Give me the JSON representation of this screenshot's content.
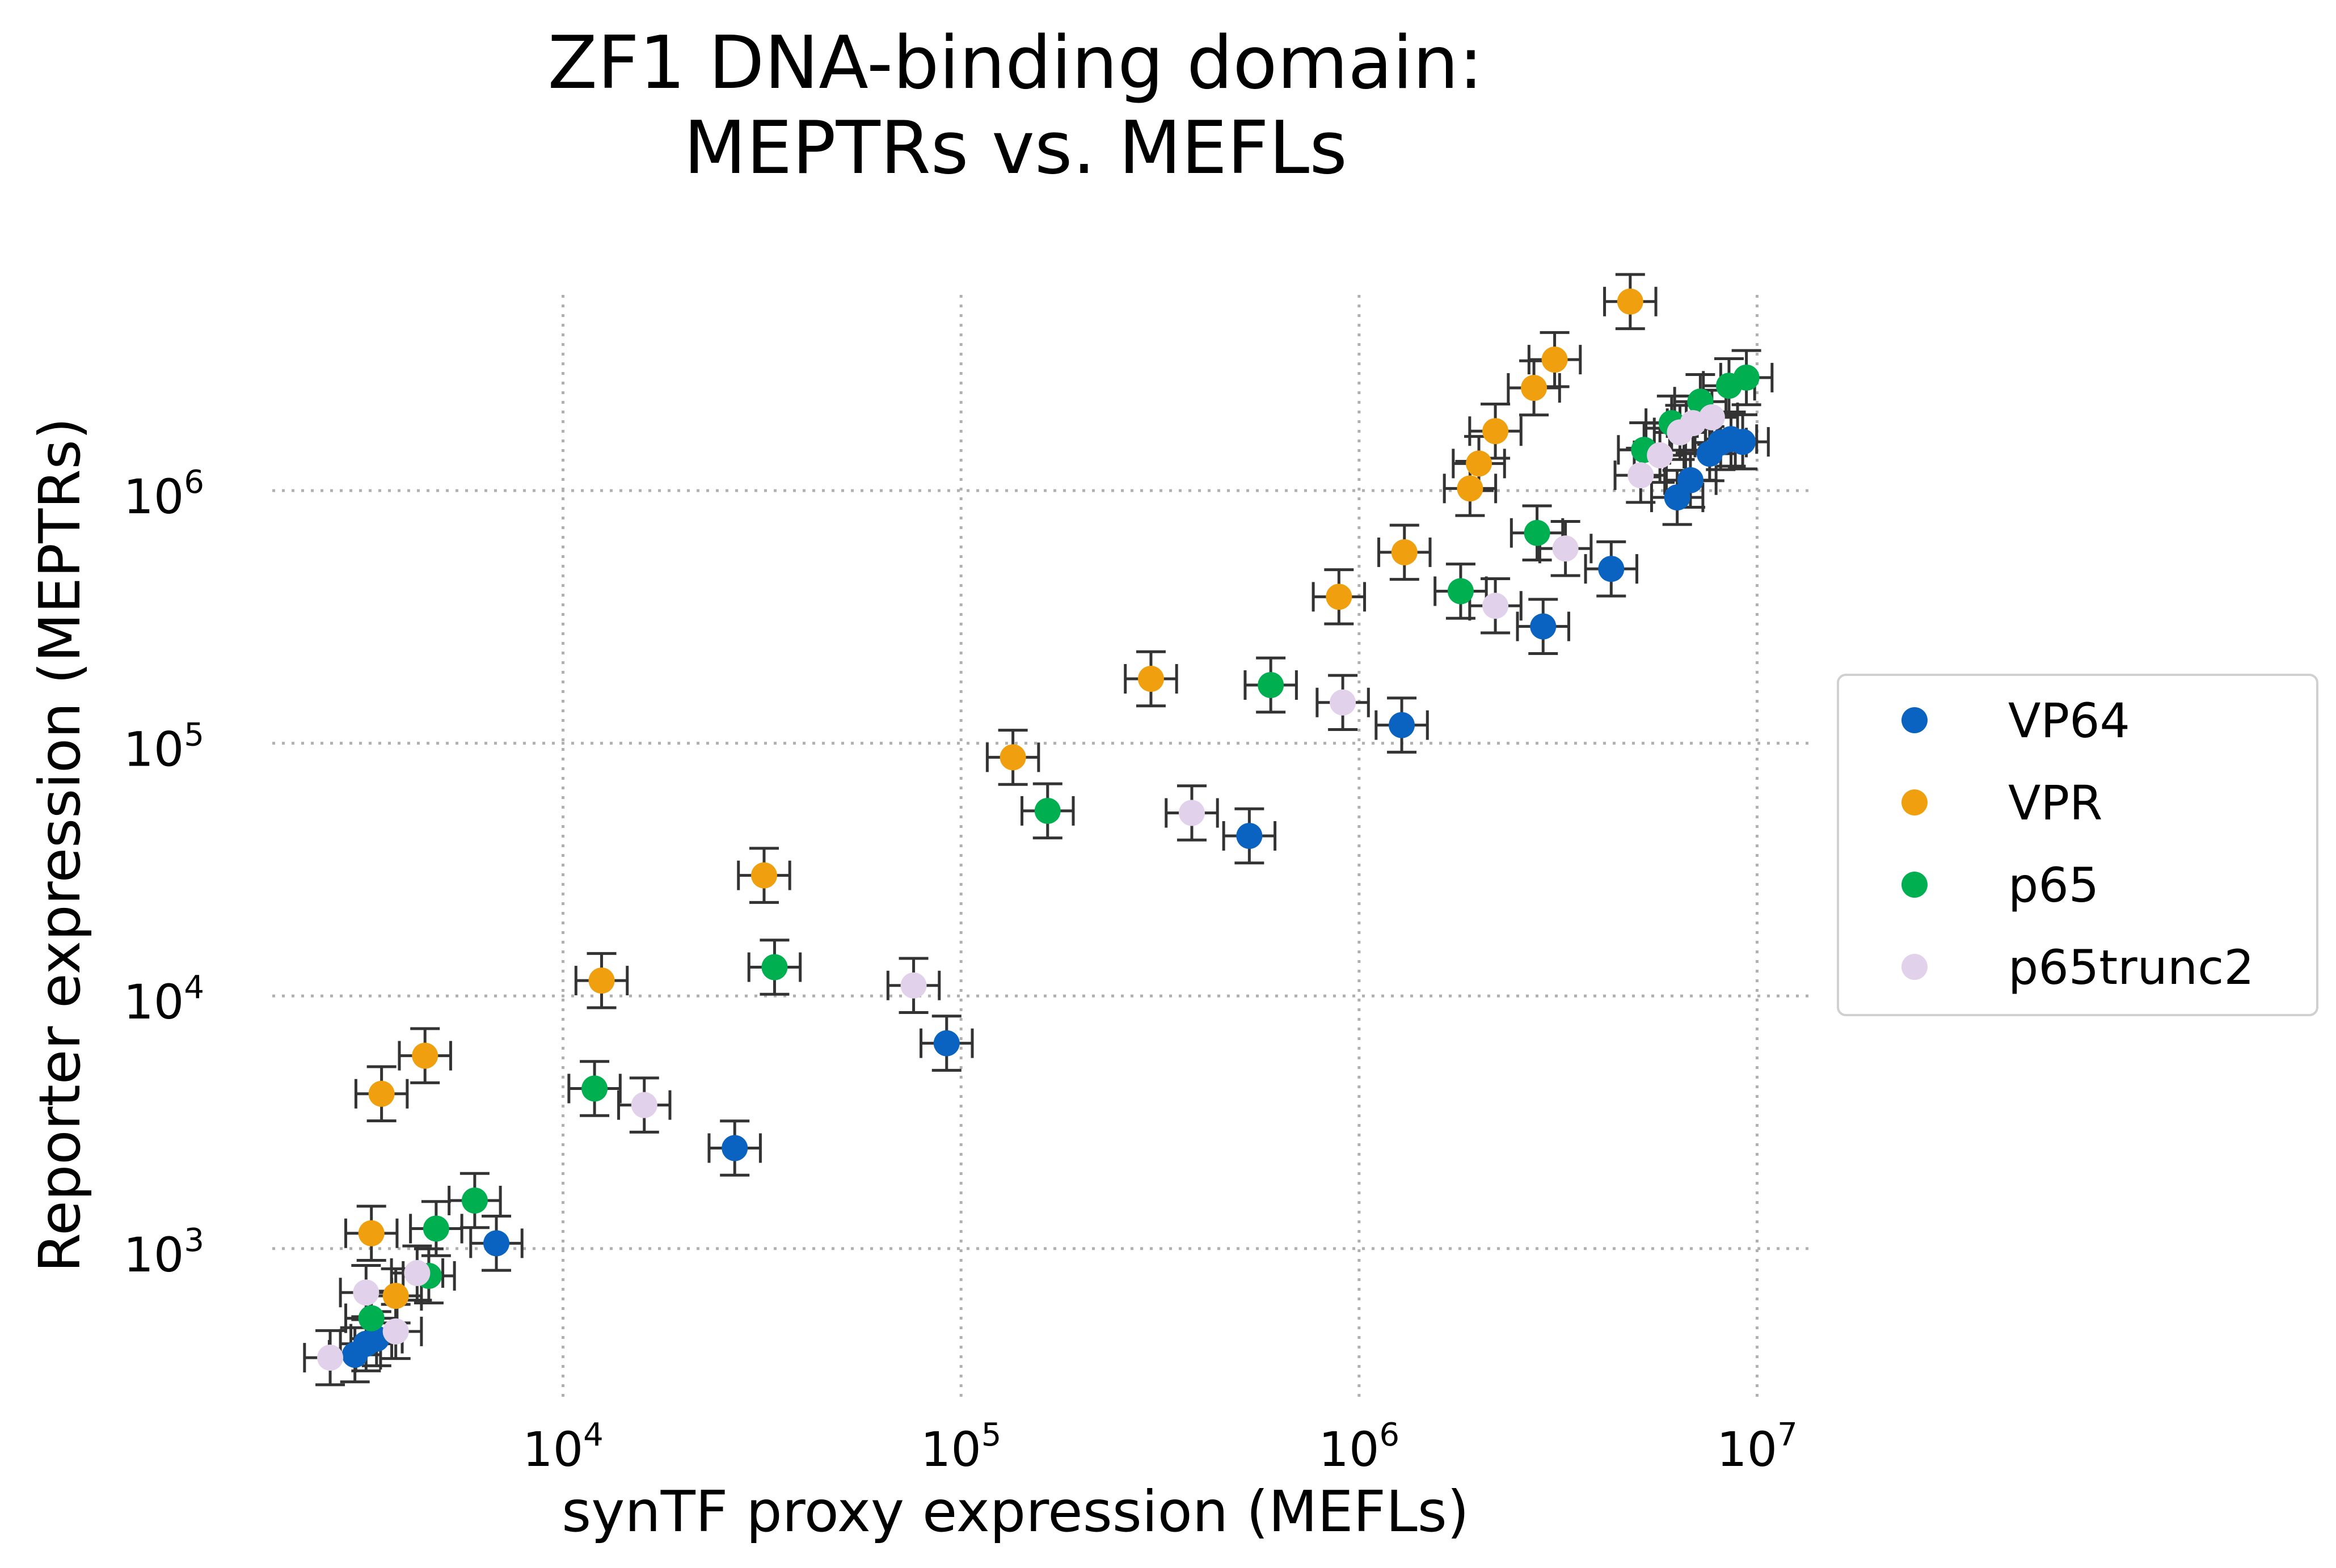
{
  "chart_data": {
    "type": "scatter",
    "title_line1": "ZF1 DNA-binding domain:",
    "title_line2": "MEPTRs vs. MEFLs",
    "xlabel": "synTF proxy expression (MEFLs)",
    "ylabel": "Reporter expression (MEPTRs)",
    "xscale": "log",
    "yscale": "log",
    "xlim": [
      1800,
      14000000
    ],
    "ylim": [
      250,
      9000000
    ],
    "grid": true,
    "legend_position": "right",
    "x_ticks": [
      {
        "base": "10",
        "exp": "4",
        "value": 10000
      },
      {
        "base": "10",
        "exp": "5",
        "value": 100000
      },
      {
        "base": "10",
        "exp": "6",
        "value": 1000000
      },
      {
        "base": "10",
        "exp": "7",
        "value": 10000000
      }
    ],
    "y_ticks": [
      {
        "base": "10",
        "exp": "3",
        "value": 1000
      },
      {
        "base": "10",
        "exp": "4",
        "value": 10000
      },
      {
        "base": "10",
        "exp": "5",
        "value": 100000
      },
      {
        "base": "10",
        "exp": "6",
        "value": 1000000
      }
    ],
    "series": [
      {
        "name": "VP64",
        "color": "#0b63c1",
        "points": [
          [
            3000,
            380
          ],
          [
            3200,
            420
          ],
          [
            3400,
            440
          ],
          [
            6800,
            1050
          ],
          [
            27000,
            2500
          ],
          [
            92000,
            6500
          ],
          [
            530000,
            43000
          ],
          [
            1280000,
            118000
          ],
          [
            2900000,
            290000
          ],
          [
            4300000,
            490000
          ],
          [
            6300000,
            940000
          ],
          [
            6800000,
            1100000
          ],
          [
            7600000,
            1400000
          ],
          [
            8100000,
            1550000
          ],
          [
            8600000,
            1600000
          ],
          [
            9200000,
            1560000
          ]
        ]
      },
      {
        "name": "VPR",
        "color": "#f0a00f",
        "points": [
          [
            3300,
            1150
          ],
          [
            3500,
            4100
          ],
          [
            3800,
            650
          ],
          [
            4500,
            5800
          ],
          [
            12500,
            11500
          ],
          [
            32000,
            30000
          ],
          [
            135000,
            88000
          ],
          [
            300000,
            180000
          ],
          [
            890000,
            380000
          ],
          [
            1300000,
            570000
          ],
          [
            1900000,
            1020000
          ],
          [
            2000000,
            1280000
          ],
          [
            2200000,
            1720000
          ],
          [
            2750000,
            2550000
          ],
          [
            3100000,
            3300000
          ],
          [
            4800000,
            5600000
          ]
        ]
      },
      {
        "name": "p65",
        "color": "#00b050",
        "points": [
          [
            3300,
            530
          ],
          [
            4600,
            780
          ],
          [
            4800,
            1200
          ],
          [
            6000,
            1550
          ],
          [
            12000,
            4300
          ],
          [
            34000,
            13000
          ],
          [
            165000,
            54000
          ],
          [
            600000,
            170000
          ],
          [
            1800000,
            400000
          ],
          [
            2800000,
            680000
          ],
          [
            5200000,
            1450000
          ],
          [
            6100000,
            1850000
          ],
          [
            7200000,
            2250000
          ],
          [
            8500000,
            2600000
          ],
          [
            9400000,
            2800000
          ]
        ]
      },
      {
        "name": "p65trunc2",
        "color": "#e2d1ea",
        "points": [
          [
            2600,
            370
          ],
          [
            3200,
            670
          ],
          [
            3800,
            470
          ],
          [
            4300,
            800
          ],
          [
            16000,
            3700
          ],
          [
            76000,
            11000
          ],
          [
            380000,
            53000
          ],
          [
            910000,
            145000
          ],
          [
            2200000,
            350000
          ],
          [
            3300000,
            590000
          ],
          [
            5100000,
            1150000
          ],
          [
            5700000,
            1380000
          ],
          [
            6400000,
            1700000
          ],
          [
            6900000,
            1850000
          ],
          [
            7700000,
            1950000
          ]
        ]
      }
    ]
  }
}
